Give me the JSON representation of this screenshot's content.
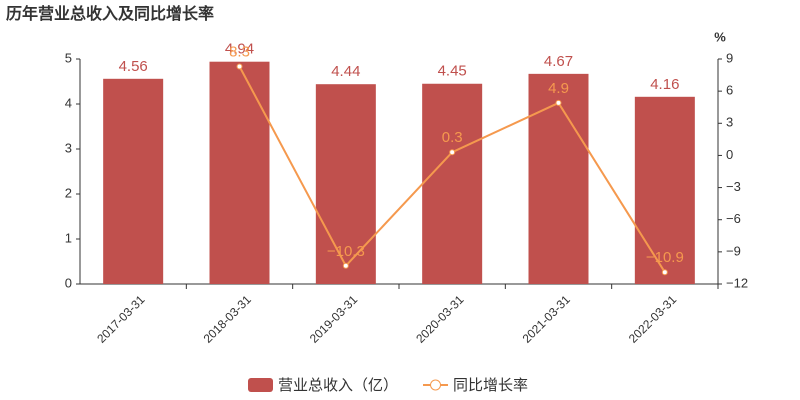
{
  "chart_data": {
    "type": "bar-line",
    "title": "历年营业总收入及同比增长率",
    "y2_unit": "%",
    "categories": [
      "2017-03-31",
      "2018-03-31",
      "2019-03-31",
      "2020-03-31",
      "2021-03-31",
      "2022-03-31"
    ],
    "series": [
      {
        "name": "营业总收入（亿）",
        "type": "bar",
        "color": "#c0504d",
        "values": [
          4.56,
          4.94,
          4.44,
          4.45,
          4.67,
          4.16
        ]
      },
      {
        "name": "同比增长率",
        "type": "line",
        "axis": "y2",
        "color": "#f5994e",
        "values": [
          null,
          8.3,
          -10.3,
          0.3,
          4.9,
          -10.9
        ],
        "value_labels": [
          null,
          "8.3",
          "−10.3",
          "0.3",
          "4.9",
          "−10.9"
        ]
      }
    ],
    "ylim": [
      0,
      5
    ],
    "yticks": [
      0,
      1,
      2,
      3,
      4,
      5
    ],
    "y2lim": [
      -12,
      9
    ],
    "y2ticks": [
      {
        "value": -12,
        "label": "−12"
      },
      {
        "value": -9,
        "label": "−9"
      },
      {
        "value": -6,
        "label": "−6"
      },
      {
        "value": -3,
        "label": "−3"
      },
      0,
      3,
      6,
      9
    ]
  }
}
